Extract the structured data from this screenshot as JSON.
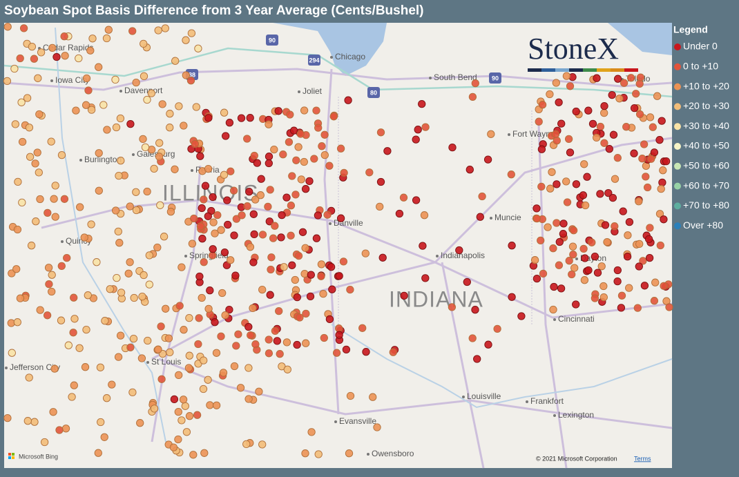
{
  "title": "Soybean Spot Basis Difference from 3 Year Average (Cents/Bushel)",
  "legend": {
    "title": "Legend",
    "items": [
      {
        "label": "Under 0",
        "color": "#c8161d"
      },
      {
        "label": "0 to +10",
        "color": "#e2543b"
      },
      {
        "label": "+10 to +20",
        "color": "#ec9255"
      },
      {
        "label": "+20 to +30",
        "color": "#f3bd79"
      },
      {
        "label": "+30 to +40",
        "color": "#f8e2a6"
      },
      {
        "label": "+40 to +50",
        "color": "#f6f4c6"
      },
      {
        "label": "+50 to +60",
        "color": "#c8e6b4"
      },
      {
        "label": "+60 to +70",
        "color": "#98d2a5"
      },
      {
        "label": "+70 to +80",
        "color": "#5eae9f"
      },
      {
        "label": "Over +80",
        "color": "#2b80ba"
      }
    ]
  },
  "map": {
    "places": [
      "Cedar Rapids",
      "Iowa City",
      "Davenport",
      "Galesburg",
      "Burlington",
      "Peoria",
      "Quincy",
      "Springfield",
      "Chicago",
      "Joliet",
      "South Bend",
      "Danville",
      "Fort Wayne",
      "Muncie",
      "Indianapolis",
      "Dayton",
      "Toledo",
      "Cincinnati",
      "Frankfort",
      "Lexington",
      "Louisville",
      "Evansville",
      "Owensboro",
      "St Louis",
      "Jefferson City"
    ],
    "states": [
      "ILLINOIS",
      "INDIANA"
    ],
    "shields": [
      "90",
      "294",
      "88",
      "80",
      "90"
    ],
    "logo": "StoneX",
    "attribution": "Microsoft Bing",
    "copyright": "© 2021 Microsoft Corporation",
    "terms": "Terms"
  }
}
